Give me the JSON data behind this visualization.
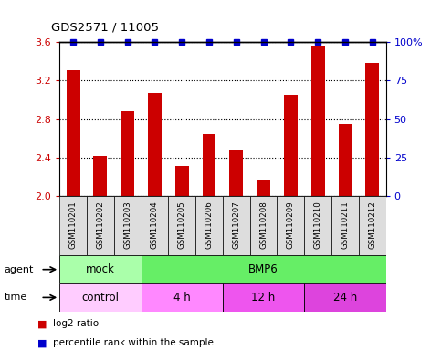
{
  "title": "GDS2571 / 11005",
  "samples": [
    "GSM110201",
    "GSM110202",
    "GSM110203",
    "GSM110204",
    "GSM110205",
    "GSM110206",
    "GSM110207",
    "GSM110208",
    "GSM110209",
    "GSM110210",
    "GSM110211",
    "GSM110212"
  ],
  "log2_values": [
    3.31,
    2.42,
    2.88,
    3.07,
    2.31,
    2.64,
    2.47,
    2.17,
    3.05,
    3.55,
    2.75,
    3.38
  ],
  "bar_color": "#cc0000",
  "dot_color": "#0000cc",
  "ylim_left": [
    2.0,
    3.6
  ],
  "ylim_right": [
    0,
    100
  ],
  "yticks_left": [
    2.0,
    2.4,
    2.8,
    3.2,
    3.6
  ],
  "yticks_right_vals": [
    0,
    25,
    50,
    75,
    100
  ],
  "yticks_right_labels": [
    "0",
    "25",
    "50",
    "75",
    "100%"
  ],
  "agent_groups": [
    {
      "label": "mock",
      "start": 0,
      "end": 3,
      "color": "#aaffaa"
    },
    {
      "label": "BMP6",
      "start": 3,
      "end": 12,
      "color": "#66ee66"
    }
  ],
  "time_groups": [
    {
      "label": "control",
      "start": 0,
      "end": 3,
      "color": "#ffccff"
    },
    {
      "label": "4 h",
      "start": 3,
      "end": 6,
      "color": "#ff88ff"
    },
    {
      "label": "12 h",
      "start": 6,
      "end": 9,
      "color": "#ee55ee"
    },
    {
      "label": "24 h",
      "start": 9,
      "end": 12,
      "color": "#dd44dd"
    }
  ],
  "sample_box_color": "#dddddd",
  "legend": [
    {
      "color": "#cc0000",
      "label": "log2 ratio"
    },
    {
      "color": "#0000cc",
      "label": "percentile rank within the sample"
    }
  ]
}
